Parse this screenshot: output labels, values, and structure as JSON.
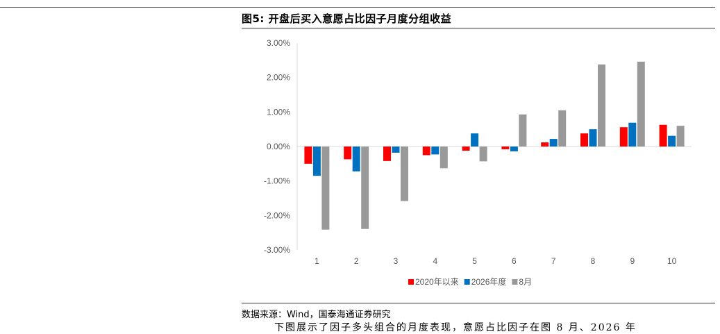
{
  "figure": {
    "title": "图5: 开盘后买入意愿占比因子月度分组收益",
    "source": "数据来源：Wind，国泰海通证券研究",
    "body_text": "下图展示了因子多头组合的月度表现，意愿占比因子在图 8 月、2026 年"
  },
  "chart_data": {
    "type": "bar",
    "categories": [
      "1",
      "2",
      "3",
      "4",
      "5",
      "6",
      "7",
      "8",
      "9",
      "10"
    ],
    "series": [
      {
        "name": "2020年以来",
        "color": "#ff0000",
        "values": [
          -0.5,
          -0.37,
          -0.42,
          -0.25,
          -0.12,
          -0.08,
          0.12,
          0.38,
          0.56,
          0.63
        ]
      },
      {
        "name": "2026年度",
        "color": "#0070c0",
        "values": [
          -0.85,
          -0.72,
          -0.18,
          -0.23,
          0.38,
          -0.14,
          0.22,
          0.5,
          0.69,
          0.31
        ]
      },
      {
        "name": "8月",
        "color": "#999999",
        "values": [
          -2.41,
          -2.39,
          -1.58,
          -0.63,
          -0.43,
          0.93,
          1.05,
          2.38,
          2.46,
          0.6
        ]
      }
    ],
    "ylim": [
      -3,
      3
    ],
    "yticks": [
      "3.00%",
      "2.00%",
      "1.00%",
      "0.00%",
      "-1.00%",
      "-2.00%",
      "-3.00%"
    ],
    "xlabel": "",
    "ylabel": "",
    "legend": "bottom",
    "grid": false
  }
}
